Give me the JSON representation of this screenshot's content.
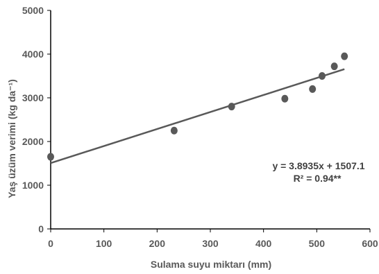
{
  "chart_data": {
    "type": "scatter",
    "x": [
      0,
      232,
      340,
      440,
      492,
      510,
      533,
      552
    ],
    "y": [
      1650,
      2250,
      2800,
      2980,
      3200,
      3500,
      3720,
      3950
    ],
    "trendline": {
      "slope": 3.8935,
      "intercept": 1507.1,
      "x_range": [
        0,
        552
      ]
    },
    "equation": "y = 3.8935x + 1507.1",
    "r2_label": "R² = 0.94**",
    "xlabel": "Sulama suyu miktarı (mm)",
    "ylabel": "Yaş üzüm verimi (kg da⁻¹)",
    "xlim": [
      0,
      600
    ],
    "ylim": [
      0,
      5000
    ],
    "x_ticks": [
      "0",
      "100",
      "200",
      "300",
      "400",
      "500",
      "600"
    ],
    "y_ticks": [
      "0",
      "1000",
      "2000",
      "3000",
      "4000",
      "5000"
    ],
    "grid": false,
    "legend": "none",
    "colors": {
      "marker": "#595959",
      "line": "#595959",
      "axis": "#000000"
    }
  }
}
